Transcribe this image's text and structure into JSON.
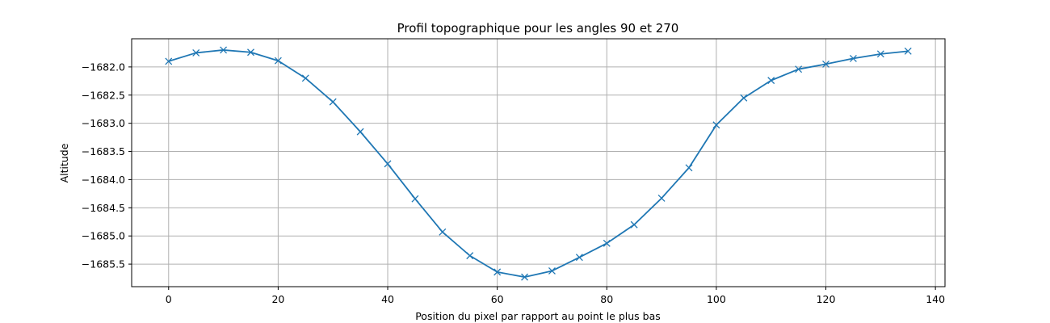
{
  "chart_data": {
    "type": "line",
    "title": "Profil topographique pour les angles 90 et 270",
    "xlabel": "Position du pixel par rapport au point le plus bas",
    "ylabel": "Altitude",
    "xlim": [
      -6.75,
      141.75
    ],
    "ylim": [
      -1685.9,
      -1681.5
    ],
    "xticks": [
      0,
      20,
      40,
      60,
      80,
      100,
      120,
      140
    ],
    "yticks": [
      -1682.0,
      -1682.5,
      -1683.0,
      -1683.5,
      -1684.0,
      -1684.5,
      -1685.0,
      -1685.5
    ],
    "xtick_labels": [
      "0",
      "20",
      "40",
      "60",
      "80",
      "100",
      "120",
      "140"
    ],
    "ytick_labels": [
      "−1682.0",
      "−1682.5",
      "−1683.0",
      "−1683.5",
      "−1684.0",
      "−1684.5",
      "−1685.0",
      "−1685.5"
    ],
    "grid": true,
    "marker": "x",
    "series": [
      {
        "color": "#1f77b4",
        "x": [
          0,
          5,
          10,
          15,
          20,
          25,
          30,
          35,
          40,
          45,
          50,
          55,
          60,
          65,
          70,
          75,
          80,
          85,
          90,
          95,
          100,
          105,
          110,
          115,
          120,
          125,
          130,
          135
        ],
        "y": [
          -1681.9,
          -1681.75,
          -1681.7,
          -1681.74,
          -1681.89,
          -1682.2,
          -1682.62,
          -1683.15,
          -1683.72,
          -1684.34,
          -1684.93,
          -1685.35,
          -1685.64,
          -1685.73,
          -1685.62,
          -1685.38,
          -1685.13,
          -1684.8,
          -1684.33,
          -1683.79,
          -1683.03,
          -1682.55,
          -1682.24,
          -1682.04,
          -1681.95,
          -1681.85,
          -1681.77,
          -1681.72
        ]
      }
    ]
  }
}
